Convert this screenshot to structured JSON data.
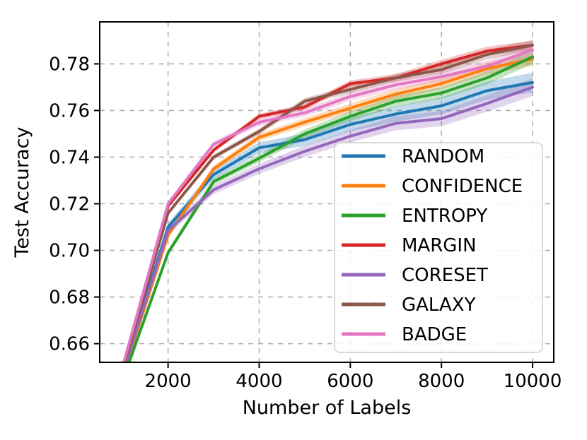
{
  "chart_data": {
    "type": "line",
    "title": "",
    "xlabel": "Number of Labels",
    "ylabel": "Test Accuracy",
    "x": [
      1000,
      2000,
      3000,
      4000,
      5000,
      6000,
      7000,
      8000,
      9000,
      10000
    ],
    "xlim": [
      500,
      10465
    ],
    "ylim": [
      0.652,
      0.798
    ],
    "xticks": [
      2000,
      4000,
      6000,
      8000,
      10000
    ],
    "xticklabels": [
      "2000",
      "4000",
      "6000",
      "8000",
      "10000"
    ],
    "yticks": [
      0.66,
      0.68,
      0.7,
      0.72,
      0.74,
      0.76,
      0.78
    ],
    "yticklabels": [
      "0.66",
      "0.68",
      "0.70",
      "0.72",
      "0.74",
      "0.76",
      "0.78"
    ],
    "grid": true,
    "grid_style": "dashed",
    "grid_color": "#b0b0b0",
    "legend_position": "lower right",
    "series": [
      {
        "name": "RANDOM",
        "color": "#1f77b4",
        "band": 0.0042,
        "values": [
          0.648,
          0.71,
          0.7325,
          0.744,
          0.7475,
          0.754,
          0.7585,
          0.762,
          0.7685,
          0.772
        ]
      },
      {
        "name": "CONFIDENCE",
        "color": "#ff7f0e",
        "band": 0.0028,
        "values": [
          0.646,
          0.7065,
          0.735,
          0.7485,
          0.755,
          0.761,
          0.767,
          0.7715,
          0.778,
          0.782
        ]
      },
      {
        "name": "ENTROPY",
        "color": "#2ca02c",
        "band": 0.003,
        "values": [
          0.644,
          0.699,
          0.7295,
          0.7395,
          0.75,
          0.7575,
          0.764,
          0.7675,
          0.774,
          0.783
        ]
      },
      {
        "name": "MARGIN",
        "color": "#d62728",
        "band": 0.002,
        "values": [
          0.648,
          0.719,
          0.743,
          0.7575,
          0.7615,
          0.7715,
          0.774,
          0.78,
          0.7855,
          0.788
        ]
      },
      {
        "name": "CORESET",
        "color": "#9467bd",
        "band": 0.0038,
        "values": [
          0.647,
          0.7085,
          0.726,
          0.735,
          0.7425,
          0.749,
          0.7545,
          0.7565,
          0.763,
          0.77
        ]
      },
      {
        "name": "GALAXY",
        "color": "#8c564b",
        "band": 0.0022,
        "values": [
          0.649,
          0.716,
          0.74,
          0.751,
          0.764,
          0.769,
          0.774,
          0.7775,
          0.784,
          0.788
        ]
      },
      {
        "name": "BADGE",
        "color": "#e377c2",
        "band": 0.0026,
        "values": [
          0.65,
          0.72,
          0.7455,
          0.755,
          0.759,
          0.766,
          0.771,
          0.7745,
          0.779,
          0.786
        ]
      }
    ]
  }
}
